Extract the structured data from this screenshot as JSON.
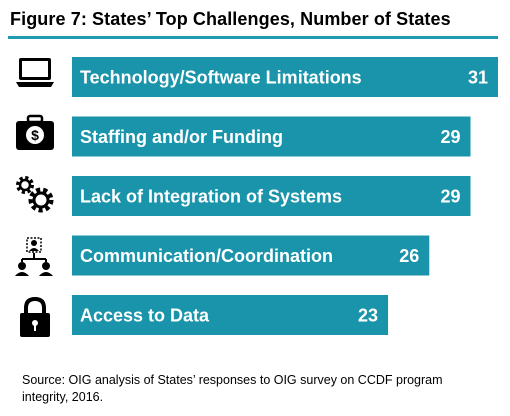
{
  "title": "Figure 7:  States’ Top Challenges, Number of States",
  "source": "Source:  OIG analysis of States’ responses to OIG survey on CCDF program integrity, 2016.",
  "colors": {
    "bar": "#1a94aa",
    "rule": "#1f9bb0",
    "icon": "#000000"
  },
  "icons": [
    "laptop-icon",
    "briefcase-dollar-icon",
    "gears-icon",
    "people-network-icon",
    "padlock-icon"
  ],
  "chart_data": {
    "type": "bar",
    "orientation": "horizontal",
    "categories": [
      "Technology/Software Limitations",
      "Staffing and/or Funding",
      "Lack of Integration of Systems",
      "Communication/Coordination",
      "Access to Data"
    ],
    "values": [
      31,
      29,
      29,
      26,
      23
    ],
    "xlim": [
      0,
      31
    ],
    "grid": false,
    "legend": "none",
    "data_labels": "inside-end"
  }
}
